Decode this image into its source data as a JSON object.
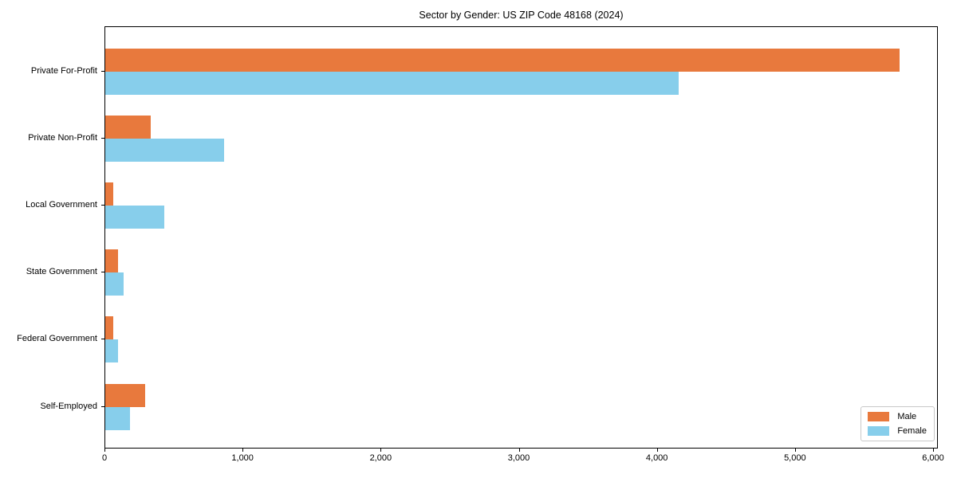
{
  "chart_data": {
    "type": "bar",
    "orientation": "horizontal",
    "title": "Sector by Gender: US ZIP Code 48168 (2024)",
    "categories": [
      "Private For-Profit",
      "Private Non-Profit",
      "Local Government",
      "State Government",
      "Federal Government",
      "Self-Employed"
    ],
    "series": [
      {
        "name": "Male",
        "color": "#e8793d",
        "values": [
          5750,
          330,
          55,
          95,
          60,
          290
        ]
      },
      {
        "name": "Female",
        "color": "#87ceeb",
        "values": [
          4150,
          860,
          430,
          130,
          95,
          180
        ]
      }
    ],
    "xlabel": "",
    "ylabel": "",
    "xlim": [
      0,
      6000
    ],
    "x_ticks": [
      {
        "value": 0,
        "label": "0"
      },
      {
        "value": 1000,
        "label": "1,000"
      },
      {
        "value": 2000,
        "label": "2,000"
      },
      {
        "value": 3000,
        "label": "3,000"
      },
      {
        "value": 4000,
        "label": "4,000"
      },
      {
        "value": 5000,
        "label": "5,000"
      },
      {
        "value": 6000,
        "label": "6,000"
      }
    ],
    "grid": false,
    "legend_position": "lower right",
    "colors": {
      "male": "#e8793d",
      "female": "#87ceeb",
      "axis": "#000000",
      "legend_border": "#c9c9c9",
      "background": "#ffffff"
    }
  }
}
